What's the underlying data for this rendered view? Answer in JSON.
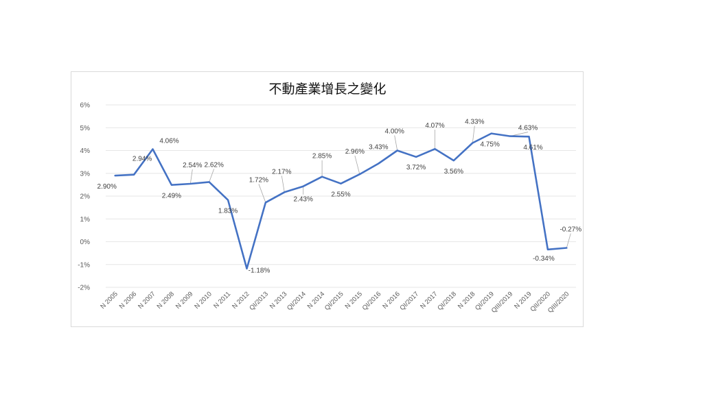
{
  "chart_data": {
    "type": "line",
    "title": "不動產業增長之變化",
    "categories": [
      "N 2005",
      "N 2006",
      "N 2007",
      "N 2008",
      "N 2009",
      "N 2010",
      "N 2011",
      "N 2012",
      "QI/2013",
      "N 2013",
      "QI/2014",
      "N 2014",
      "QI/2015",
      "N 2015",
      "QI/2016",
      "N 2016",
      "QI/2017",
      "N 2017",
      "QI/2018",
      "N 2018",
      "QI/2019",
      "QIII/2019",
      "N 2019",
      "QII/2020",
      "QIII/2020"
    ],
    "values": [
      2.9,
      2.94,
      4.06,
      2.49,
      2.54,
      2.62,
      1.83,
      -1.18,
      1.72,
      2.17,
      2.43,
      2.85,
      2.55,
      2.96,
      3.43,
      4.0,
      3.72,
      4.07,
      3.56,
      4.33,
      4.75,
      4.63,
      4.61,
      -0.34,
      -0.27
    ],
    "data_labels": [
      "2.90%",
      "2.94%",
      "4.06%",
      "2.49%",
      "2.54%",
      "2.62%",
      "1.83%",
      "-1.18%",
      "1.72%",
      "2.17%",
      "2.43%",
      "2.85%",
      "2.55%",
      "2.96%",
      "3.43%",
      "4.00%",
      "3.72%",
      "4.07%",
      "3.56%",
      "4.33%",
      "4.75%",
      "4.63%",
      "4.61%",
      "-0.34%",
      "-0.27%"
    ],
    "yticks": [
      6,
      5,
      4,
      3,
      2,
      1,
      0,
      -1,
      -2
    ],
    "ytick_labels": [
      "6%",
      "5%",
      "4%",
      "3%",
      "2%",
      "1%",
      "0%",
      "-1%",
      "-2%"
    ],
    "ylim": [
      -2,
      6
    ],
    "grid": true,
    "line_color": "#4472c4",
    "xlabel": "",
    "ylabel": ""
  }
}
